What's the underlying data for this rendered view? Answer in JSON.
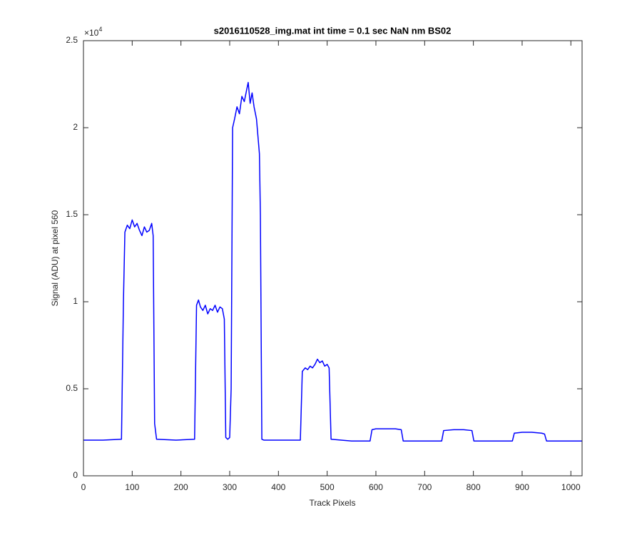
{
  "chart_data": {
    "type": "line",
    "title": "s2016110528_img.mat int time = 0.1 sec  NaN nm BS02",
    "x_label": "Track Pixels",
    "y_label": "Signal (ADU) at pixel 560",
    "y_multiplier": {
      "base": "×10",
      "exponent": "4"
    },
    "x": [
      0,
      40,
      78,
      82,
      85,
      90,
      95,
      100,
      105,
      110,
      115,
      120,
      125,
      130,
      135,
      140,
      143,
      146,
      150,
      190,
      228,
      232,
      236,
      240,
      245,
      250,
      255,
      260,
      265,
      270,
      275,
      280,
      285,
      289,
      292,
      296,
      300,
      303,
      306,
      310,
      315,
      320,
      325,
      330,
      335,
      338,
      342,
      346,
      350,
      355,
      358,
      361,
      363,
      366,
      370,
      400,
      445,
      449,
      455,
      460,
      465,
      470,
      475,
      480,
      485,
      490,
      495,
      500,
      504,
      508,
      550,
      588,
      592,
      600,
      620,
      640,
      652,
      656,
      700,
      735,
      739,
      760,
      780,
      797,
      801,
      840,
      880,
      884,
      900,
      920,
      940,
      946,
      950,
      1000,
      1023
    ],
    "series": [
      {
        "color": "#0000ff",
        "values": [
          0.205,
          0.205,
          0.21,
          1.0,
          1.4,
          1.44,
          1.42,
          1.47,
          1.43,
          1.45,
          1.41,
          1.38,
          1.43,
          1.4,
          1.41,
          1.45,
          1.38,
          0.3,
          0.21,
          0.205,
          0.21,
          0.98,
          1.01,
          0.97,
          0.95,
          0.98,
          0.93,
          0.96,
          0.95,
          0.98,
          0.94,
          0.97,
          0.96,
          0.9,
          0.22,
          0.21,
          0.22,
          0.5,
          2.0,
          2.05,
          2.12,
          2.08,
          2.18,
          2.15,
          2.22,
          2.26,
          2.14,
          2.2,
          2.12,
          2.05,
          1.95,
          1.85,
          1.5,
          0.21,
          0.205,
          0.205,
          0.205,
          0.6,
          0.62,
          0.61,
          0.63,
          0.62,
          0.64,
          0.67,
          0.65,
          0.66,
          0.63,
          0.64,
          0.62,
          0.21,
          0.2,
          0.2,
          0.265,
          0.27,
          0.27,
          0.27,
          0.265,
          0.2,
          0.2,
          0.2,
          0.26,
          0.265,
          0.265,
          0.26,
          0.2,
          0.2,
          0.2,
          0.245,
          0.25,
          0.25,
          0.245,
          0.24,
          0.2,
          0.2,
          0.2
        ]
      }
    ],
    "xlim": [
      0,
      1023
    ],
    "xticks": [
      0,
      100,
      200,
      300,
      400,
      500,
      600,
      700,
      800,
      900,
      1000
    ],
    "ylim": [
      0,
      2.5
    ],
    "yticks": [
      0,
      0.5,
      1,
      1.5,
      2,
      2.5
    ],
    "grid": false
  }
}
